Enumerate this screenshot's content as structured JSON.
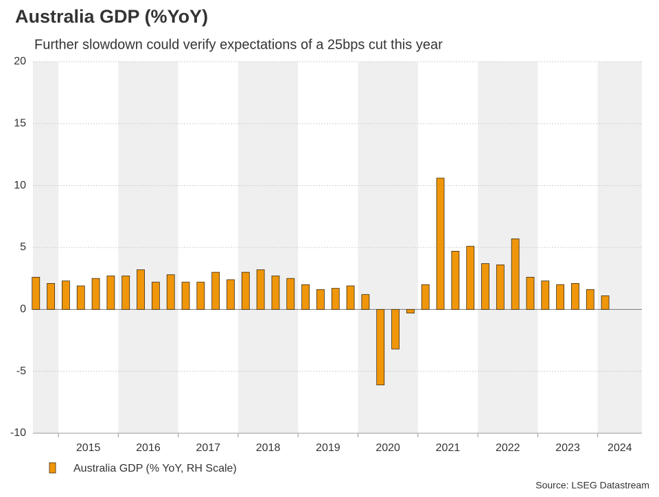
{
  "chart_data": {
    "type": "bar",
    "title": "Australia GDP (%YoY)",
    "subtitle": "Further slowdown could verify expectations of a 25bps cut this year",
    "source": "Source: LSEG Datastream",
    "categories": [
      null,
      null,
      null,
      null,
      null,
      null,
      null,
      null,
      null,
      null,
      null,
      null,
      null,
      null,
      null,
      null,
      null,
      null,
      null,
      null,
      null,
      null,
      null,
      null,
      null,
      null,
      null,
      null,
      null,
      null,
      null,
      null,
      null,
      null,
      null,
      null,
      null,
      null,
      null
    ],
    "year_labels": [
      "2015",
      "2016",
      "2017",
      "2018",
      "2019",
      "2020",
      "2021",
      "2022",
      "2023",
      "2024"
    ],
    "series": [
      {
        "name": "Australia GDP (% YoY, RH Scale)",
        "color": "#f0960a",
        "values": [
          2.6,
          2.1,
          2.3,
          1.9,
          2.5,
          2.7,
          2.7,
          3.2,
          2.2,
          2.8,
          2.2,
          2.2,
          3.0,
          2.4,
          3.0,
          3.2,
          2.7,
          2.5,
          2.0,
          1.6,
          1.7,
          1.9,
          1.2,
          -6.1,
          -3.2,
          -0.3,
          2.0,
          10.6,
          4.7,
          5.1,
          3.7,
          3.6,
          5.7,
          2.6,
          2.3,
          2.0,
          2.1,
          1.6,
          1.1
        ]
      }
    ],
    "ylim": [
      -10,
      20
    ],
    "yticks": [
      -10,
      -5,
      0,
      5,
      10,
      15,
      20
    ],
    "grid": true
  }
}
